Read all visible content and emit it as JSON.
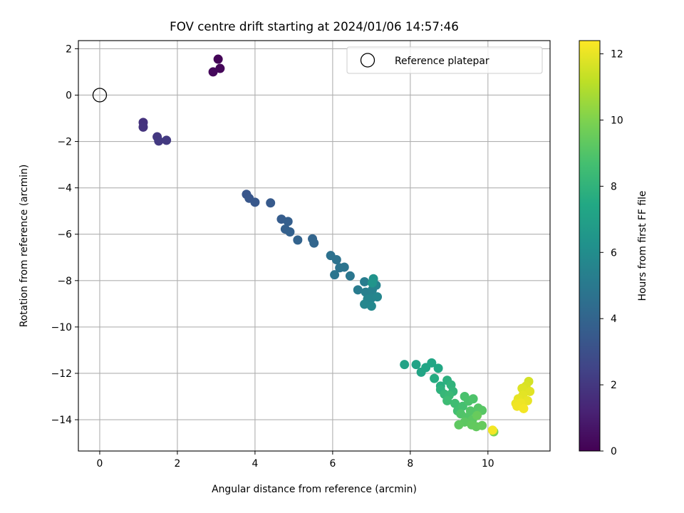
{
  "chart_data": {
    "type": "scatter",
    "title": "FOV centre drift starting at 2024/01/06 14:57:46",
    "xlabel": "Angular distance from reference (arcmin)",
    "ylabel": "Rotation from reference (arcmin)",
    "xlim": [
      -0.55,
      11.6
    ],
    "ylim": [
      -15.35,
      2.35
    ],
    "xticks": [
      0,
      2,
      4,
      6,
      8,
      10
    ],
    "yticks": [
      2,
      0,
      -2,
      -4,
      -6,
      -8,
      -10,
      -12,
      -14
    ],
    "xtick_labels": [
      "0",
      "2",
      "4",
      "6",
      "8",
      "10"
    ],
    "ytick_labels": [
      "2",
      "0",
      "−2",
      "−4",
      "−6",
      "−8",
      "−10",
      "−12",
      "−14"
    ],
    "grid": true,
    "legend": {
      "position": "upper right",
      "entries": [
        "Reference platepar"
      ]
    },
    "colorbar": {
      "label": "Hours from first FF file",
      "colormap": "viridis",
      "range": [
        0,
        12.4
      ],
      "ticks": [
        0,
        2,
        4,
        6,
        8,
        10,
        12
      ],
      "tick_labels": [
        "0",
        "2",
        "4",
        "6",
        "8",
        "10",
        "12"
      ]
    },
    "reference_point": {
      "x": 0,
      "y": 0,
      "label": "Reference platepar"
    },
    "series": [
      {
        "name": "FOV centre drift",
        "points": [
          [
            3.05,
            1.55,
            0.1
          ],
          [
            3.1,
            1.15,
            0.2
          ],
          [
            2.92,
            1.0,
            0.25
          ],
          [
            1.12,
            -1.18,
            1.8
          ],
          [
            1.12,
            -1.38,
            1.85
          ],
          [
            1.48,
            -1.8,
            2.0
          ],
          [
            1.52,
            -1.98,
            2.05
          ],
          [
            1.72,
            -1.95,
            2.1
          ],
          [
            3.78,
            -4.28,
            3.3
          ],
          [
            3.85,
            -4.45,
            3.35
          ],
          [
            4.0,
            -4.62,
            3.4
          ],
          [
            4.4,
            -4.65,
            3.5
          ],
          [
            4.68,
            -5.35,
            3.65
          ],
          [
            4.85,
            -5.45,
            3.7
          ],
          [
            4.78,
            -5.78,
            3.75
          ],
          [
            4.9,
            -5.9,
            3.8
          ],
          [
            5.1,
            -6.25,
            3.9
          ],
          [
            5.48,
            -6.2,
            4.0
          ],
          [
            5.52,
            -6.38,
            4.05
          ],
          [
            5.95,
            -6.92,
            4.6
          ],
          [
            6.1,
            -7.1,
            4.65
          ],
          [
            6.18,
            -7.45,
            4.7
          ],
          [
            6.3,
            -7.42,
            4.75
          ],
          [
            6.05,
            -7.75,
            4.8
          ],
          [
            6.45,
            -7.8,
            4.85
          ],
          [
            6.65,
            -8.4,
            5.1
          ],
          [
            6.82,
            -8.05,
            5.2
          ],
          [
            6.85,
            -8.5,
            5.3
          ],
          [
            7.02,
            -8.4,
            5.4
          ],
          [
            7.12,
            -8.2,
            5.5
          ],
          [
            7.0,
            -8.75,
            5.55
          ],
          [
            6.9,
            -8.8,
            5.6
          ],
          [
            7.15,
            -8.7,
            5.65
          ],
          [
            6.82,
            -9.02,
            5.7
          ],
          [
            7.0,
            -9.1,
            5.75
          ],
          [
            7.05,
            -7.92,
            6.3
          ],
          [
            7.02,
            -8.1,
            6.4
          ],
          [
            7.85,
            -11.62,
            7.1
          ],
          [
            8.15,
            -11.62,
            7.15
          ],
          [
            8.28,
            -11.95,
            7.25
          ],
          [
            8.4,
            -11.75,
            7.3
          ],
          [
            8.55,
            -11.55,
            7.35
          ],
          [
            8.72,
            -11.78,
            7.4
          ],
          [
            8.62,
            -12.22,
            7.6
          ],
          [
            8.78,
            -12.55,
            7.7
          ],
          [
            8.95,
            -12.3,
            7.8
          ],
          [
            8.78,
            -12.7,
            7.9
          ],
          [
            9.05,
            -12.5,
            8.0
          ],
          [
            9.1,
            -12.78,
            8.1
          ],
          [
            8.88,
            -12.9,
            8.2
          ],
          [
            9.0,
            -12.95,
            8.3
          ],
          [
            8.95,
            -13.18,
            8.45
          ],
          [
            9.15,
            -13.3,
            8.5
          ],
          [
            9.22,
            -13.62,
            8.6
          ],
          [
            9.35,
            -13.42,
            8.7
          ],
          [
            9.4,
            -13.0,
            8.8
          ],
          [
            9.5,
            -13.2,
            8.85
          ],
          [
            9.62,
            -13.1,
            8.9
          ],
          [
            9.3,
            -13.75,
            8.95
          ],
          [
            9.45,
            -13.9,
            9.0
          ],
          [
            9.55,
            -13.62,
            9.05
          ],
          [
            9.75,
            -13.5,
            9.1
          ],
          [
            9.85,
            -13.6,
            9.15
          ],
          [
            9.6,
            -14.0,
            9.2
          ],
          [
            9.4,
            -14.1,
            9.25
          ],
          [
            9.25,
            -14.22,
            9.3
          ],
          [
            9.58,
            -14.22,
            9.35
          ],
          [
            9.7,
            -14.3,
            9.4
          ],
          [
            9.85,
            -14.25,
            9.45
          ],
          [
            9.72,
            -13.82,
            9.5
          ],
          [
            10.15,
            -14.52,
            10.0
          ],
          [
            10.12,
            -14.45,
            12.2
          ],
          [
            11.05,
            -12.35,
            11.6
          ],
          [
            10.98,
            -12.55,
            11.7
          ],
          [
            10.88,
            -12.65,
            11.8
          ],
          [
            11.08,
            -12.78,
            11.85
          ],
          [
            10.9,
            -12.95,
            11.9
          ],
          [
            10.78,
            -13.1,
            11.95
          ],
          [
            11.02,
            -13.18,
            12.0
          ],
          [
            10.72,
            -13.3,
            12.05
          ],
          [
            10.85,
            -13.28,
            12.1
          ],
          [
            10.75,
            -13.42,
            12.15
          ],
          [
            10.92,
            -13.52,
            12.2
          ]
        ]
      }
    ]
  }
}
